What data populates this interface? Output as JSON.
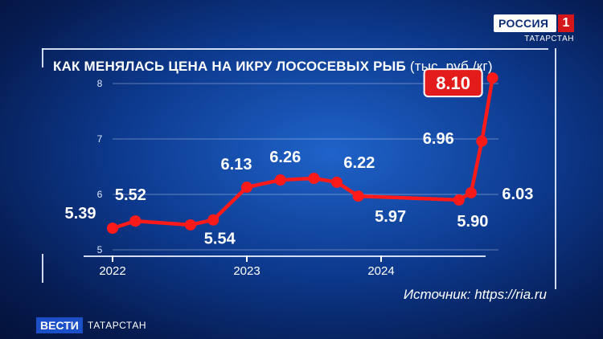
{
  "brand": {
    "channel": "РОССИЯ",
    "channel_number": "1",
    "region": "ТАТАРСТАН",
    "news": "ВЕСТИ",
    "news_region": "ТАТАРСТАН"
  },
  "title": {
    "main": "КАК МЕНЯЛАСЬ ЦЕНА НА ИКРУ ЛОСОСЕВЫХ РЫБ",
    "unit": "(тыс. руб./кг)"
  },
  "source": "Источник: https://ria.ru",
  "colors": {
    "line": "#ff1a1a",
    "highlight_box": "#e31b1b",
    "background": "#0d3a8f"
  },
  "chart_data": {
    "type": "line",
    "x_ticks": [
      "2022",
      "2023",
      "2024"
    ],
    "y_ticks": [
      "5",
      "6",
      "7",
      "8"
    ],
    "ylim": [
      5,
      8
    ],
    "series": [
      {
        "x": [
          2022.0,
          2022.17,
          2022.58,
          2022.75,
          2023.0,
          2023.25,
          2023.5,
          2023.67,
          2023.83,
          2024.58,
          2024.67,
          2024.75,
          2024.83
        ],
        "values": [
          5.39,
          5.52,
          5.45,
          5.54,
          6.13,
          6.26,
          6.29,
          6.22,
          5.97,
          5.9,
          6.03,
          6.96,
          8.1
        ]
      }
    ],
    "data_labels": [
      {
        "text": "5.39",
        "point": 0
      },
      {
        "text": "5.52",
        "point": 1
      },
      {
        "text": "5.54",
        "point": 3
      },
      {
        "text": "6.13",
        "point": 4
      },
      {
        "text": "6.26",
        "point": 5
      },
      {
        "text": "6.22",
        "point": 7
      },
      {
        "text": "5.97",
        "point": 8
      },
      {
        "text": "5.90",
        "point": 9
      },
      {
        "text": "6.03",
        "point": 10
      },
      {
        "text": "6.96",
        "point": 11
      },
      {
        "text": "8.10",
        "point": 12,
        "highlight": true
      }
    ],
    "grid": true
  }
}
